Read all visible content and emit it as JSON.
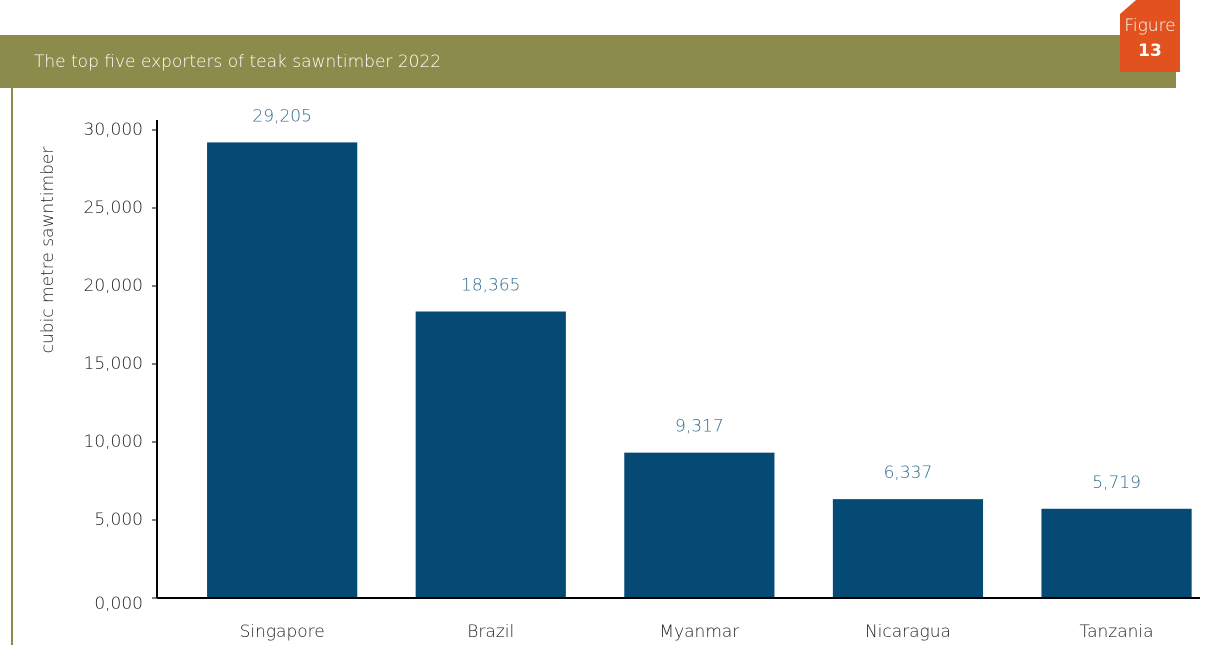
{
  "chart_data": {
    "type": "bar",
    "title": "The top five exporters of teak sawntimber 2022",
    "figure": {
      "label": "Figure",
      "number": "13"
    },
    "y_label": "cubic metre sawntimber",
    "categories": [
      "Singapore",
      "Brazil",
      "Myanmar",
      "Nicaragua",
      "Tanzania"
    ],
    "values": [
      29205,
      18365,
      9317,
      6337,
      5719
    ],
    "value_labels": [
      "29,205",
      "18,365",
      "9,317",
      "6,337",
      "5,719"
    ],
    "color": "#044a74",
    "ylim": [
      0,
      30000
    ],
    "yticks": [
      {
        "value": 0,
        "label": "0,000"
      },
      {
        "value": 5000,
        "label": "5,000"
      },
      {
        "value": 10000,
        "label": "10,000"
      },
      {
        "value": 15000,
        "label": "15,000"
      },
      {
        "value": 20000,
        "label": "20,000"
      },
      {
        "value": 25000,
        "label": "25,000"
      },
      {
        "value": 30000,
        "label": "30,000"
      }
    ],
    "grid": false
  }
}
